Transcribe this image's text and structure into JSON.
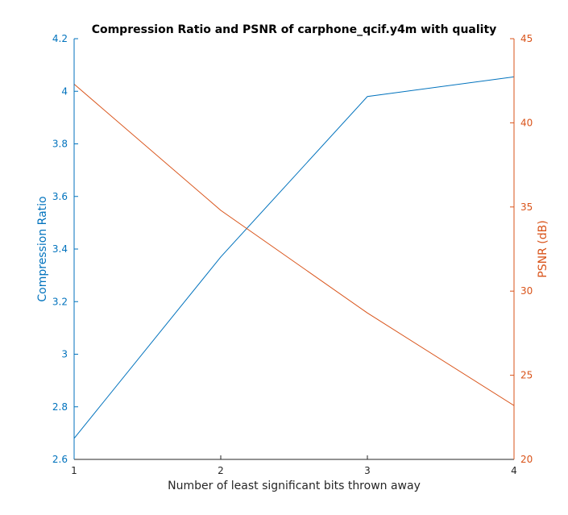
{
  "chart_data": {
    "type": "line",
    "title": "Compression Ratio and PSNR of carphone_qcif.y4m with quality",
    "xlabel": "Number of least significant bits thrown away",
    "x": [
      1,
      2,
      3,
      4
    ],
    "xlim": [
      1,
      4
    ],
    "xticks": [
      "1",
      "2",
      "3",
      "4"
    ],
    "grid": false,
    "legend": "none",
    "left_axis": {
      "label": "Compression Ratio",
      "ylim": [
        2.6,
        4.2
      ],
      "ticks": [
        "2.6",
        "2.8",
        "3",
        "3.2",
        "3.4",
        "3.6",
        "3.8",
        "4",
        "4.2"
      ],
      "color": "#0072BD"
    },
    "right_axis": {
      "label": "PSNR (dB)",
      "ylim": [
        20,
        45
      ],
      "ticks": [
        "20",
        "25",
        "30",
        "35",
        "40",
        "45"
      ],
      "color": "#D95319"
    },
    "series": [
      {
        "axis": "left",
        "color": "#0072BD",
        "values": [
          2.68,
          3.37,
          3.98,
          4.055
        ]
      },
      {
        "axis": "right",
        "color": "#D95319",
        "values": [
          42.3,
          34.8,
          28.7,
          23.2
        ]
      }
    ]
  }
}
